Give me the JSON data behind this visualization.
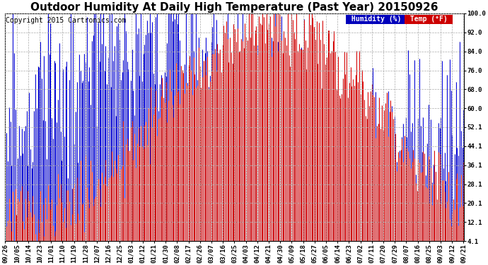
{
  "title": "Outdoor Humidity At Daily High Temperature (Past Year) 20150926",
  "copyright": "Copyright 2015 Cartronics.com",
  "legend_humidity": "Humidity (%)",
  "legend_temp": "Temp (°F)",
  "humidity_color": "#0000ff",
  "temp_color": "#ff0000",
  "black_color": "#000000",
  "bg_color": "#ffffff",
  "grid_color": "#aaaaaa",
  "legend_humidity_bg": "#0000bb",
  "legend_temp_bg": "#cc0000",
  "ylim_min": 4.1,
  "ylim_max": 100.0,
  "yticks": [
    4.1,
    12.1,
    20.1,
    28.1,
    36.1,
    44.1,
    52.1,
    60.0,
    68.0,
    76.0,
    84.0,
    92.0,
    100.0
  ],
  "xtick_labels": [
    "09/26",
    "10/05",
    "10/14",
    "10/23",
    "11/01",
    "11/10",
    "11/19",
    "11/28",
    "12/07",
    "12/16",
    "12/25",
    "01/03",
    "01/12",
    "01/21",
    "01/30",
    "02/08",
    "02/17",
    "02/26",
    "03/07",
    "03/16",
    "03/25",
    "04/03",
    "04/12",
    "04/21",
    "04/30",
    "05/09",
    "05/18",
    "05/27",
    "06/05",
    "06/14",
    "06/23",
    "07/02",
    "07/11",
    "07/20",
    "07/29",
    "08/07",
    "08/16",
    "08/25",
    "09/03",
    "09/12",
    "09/21"
  ],
  "title_fontsize": 11,
  "copyright_fontsize": 7,
  "tick_fontsize": 6.5,
  "legend_fontsize": 7,
  "figwidth": 6.9,
  "figheight": 3.75,
  "dpi": 100
}
